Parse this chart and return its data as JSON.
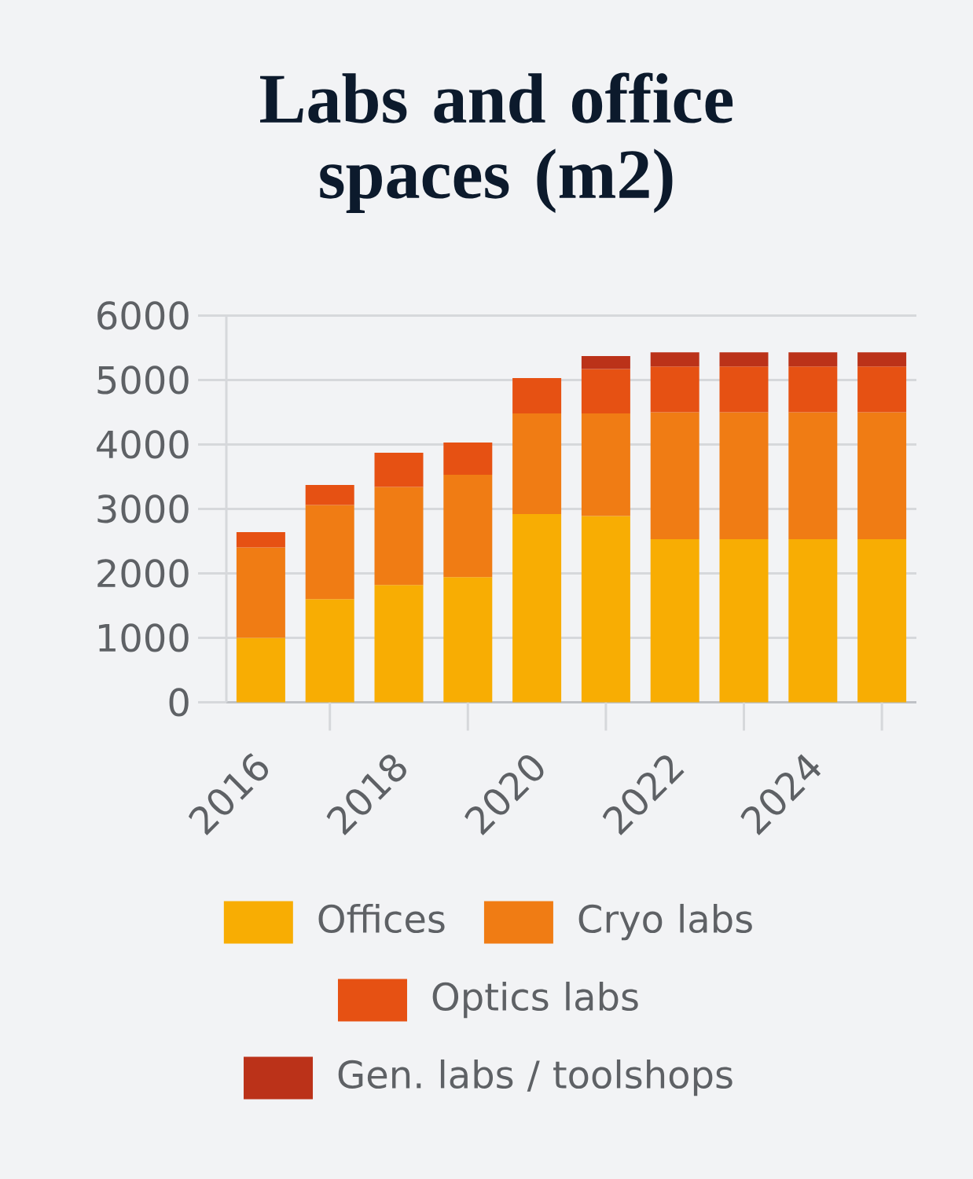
{
  "chart_data": {
    "type": "bar",
    "title": "Labs and office spaces (m2)",
    "categories": [
      "2016",
      null,
      "2018",
      null,
      "2020",
      null,
      "2022",
      null,
      "2024",
      null
    ],
    "stacked": true,
    "series": [
      {
        "name": "Offices",
        "color": "#f8ad03",
        "values": [
          1000,
          1600,
          1820,
          1940,
          2920,
          2890,
          2530,
          2530,
          2530,
          2530
        ]
      },
      {
        "name": "Cryo labs",
        "color": "#f07c14",
        "values": [
          1400,
          1460,
          1520,
          1590,
          1560,
          1590,
          1970,
          1970,
          1970,
          1970
        ]
      },
      {
        "name": "Optics labs",
        "color": "#e65113",
        "values": [
          240,
          310,
          530,
          500,
          550,
          690,
          710,
          710,
          710,
          710
        ]
      },
      {
        "name": "Gen. labs / toolshops",
        "color": "#bb3219",
        "values": [
          null,
          null,
          null,
          null,
          null,
          200,
          220,
          220,
          220,
          220
        ]
      }
    ],
    "ylim": [
      0,
      6000
    ],
    "yticks": [
      0,
      1000,
      2000,
      3000,
      4000,
      5000,
      6000
    ],
    "grid": "y",
    "legend": "bottom"
  }
}
